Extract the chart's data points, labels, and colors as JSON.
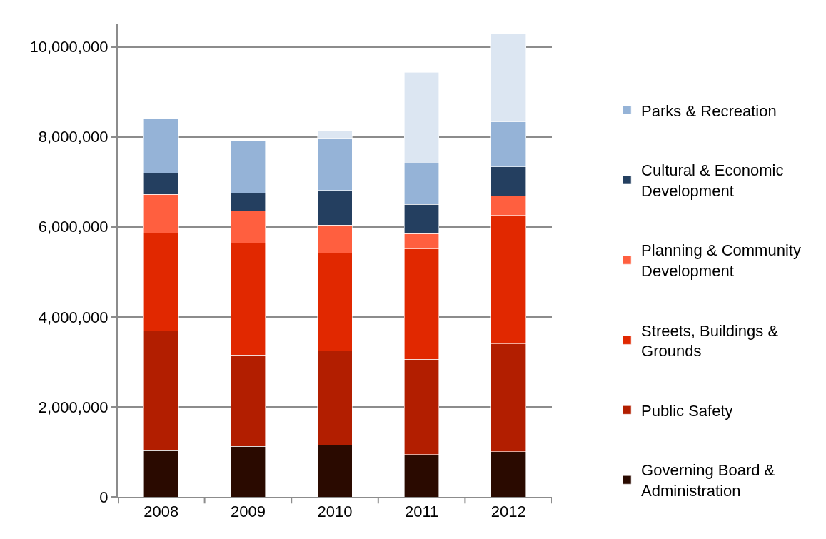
{
  "chart_data": {
    "type": "bar",
    "stacked": true,
    "categories": [
      "2008",
      "2009",
      "2010",
      "2011",
      "2012"
    ],
    "series": [
      {
        "name": "Governing Board & Administration",
        "color": "#2a0a00",
        "values": [
          1030000,
          1120000,
          1150000,
          940000,
          1000000
        ]
      },
      {
        "name": "Public Safety",
        "color": "#b21e00",
        "values": [
          2650000,
          2030000,
          2100000,
          2120000,
          2400000
        ]
      },
      {
        "name": "Streets, Buildings & Grounds",
        "color": "#e12800",
        "values": [
          2180000,
          2490000,
          2170000,
          2450000,
          2850000
        ]
      },
      {
        "name": "Planning & Community Development",
        "color": "#ff5f3f",
        "values": [
          860000,
          710000,
          620000,
          340000,
          440000
        ]
      },
      {
        "name": "Cultural & Economic Development",
        "color": "#243f60",
        "values": [
          480000,
          400000,
          770000,
          650000,
          640000
        ]
      },
      {
        "name": "Parks & Recreation",
        "color": "#95b3d7",
        "values": [
          1210000,
          1170000,
          1140000,
          920000,
          1010000
        ]
      },
      {
        "color": "#dce6f2",
        "values": [
          null,
          null,
          180000,
          2010000,
          1960000
        ]
      }
    ],
    "ylim": [
      0,
      10500000
    ],
    "yticks": [
      0,
      {
        "value": 2000000,
        "label": "2,000,000"
      },
      {
        "value": 4000000,
        "label": "4,000,000"
      },
      {
        "value": 6000000,
        "label": "6,000,000"
      },
      {
        "value": 8000000,
        "label": "8,000,000"
      },
      {
        "value": 10000000,
        "label": "10,000,000"
      }
    ],
    "grid": "y",
    "legend": "right"
  }
}
